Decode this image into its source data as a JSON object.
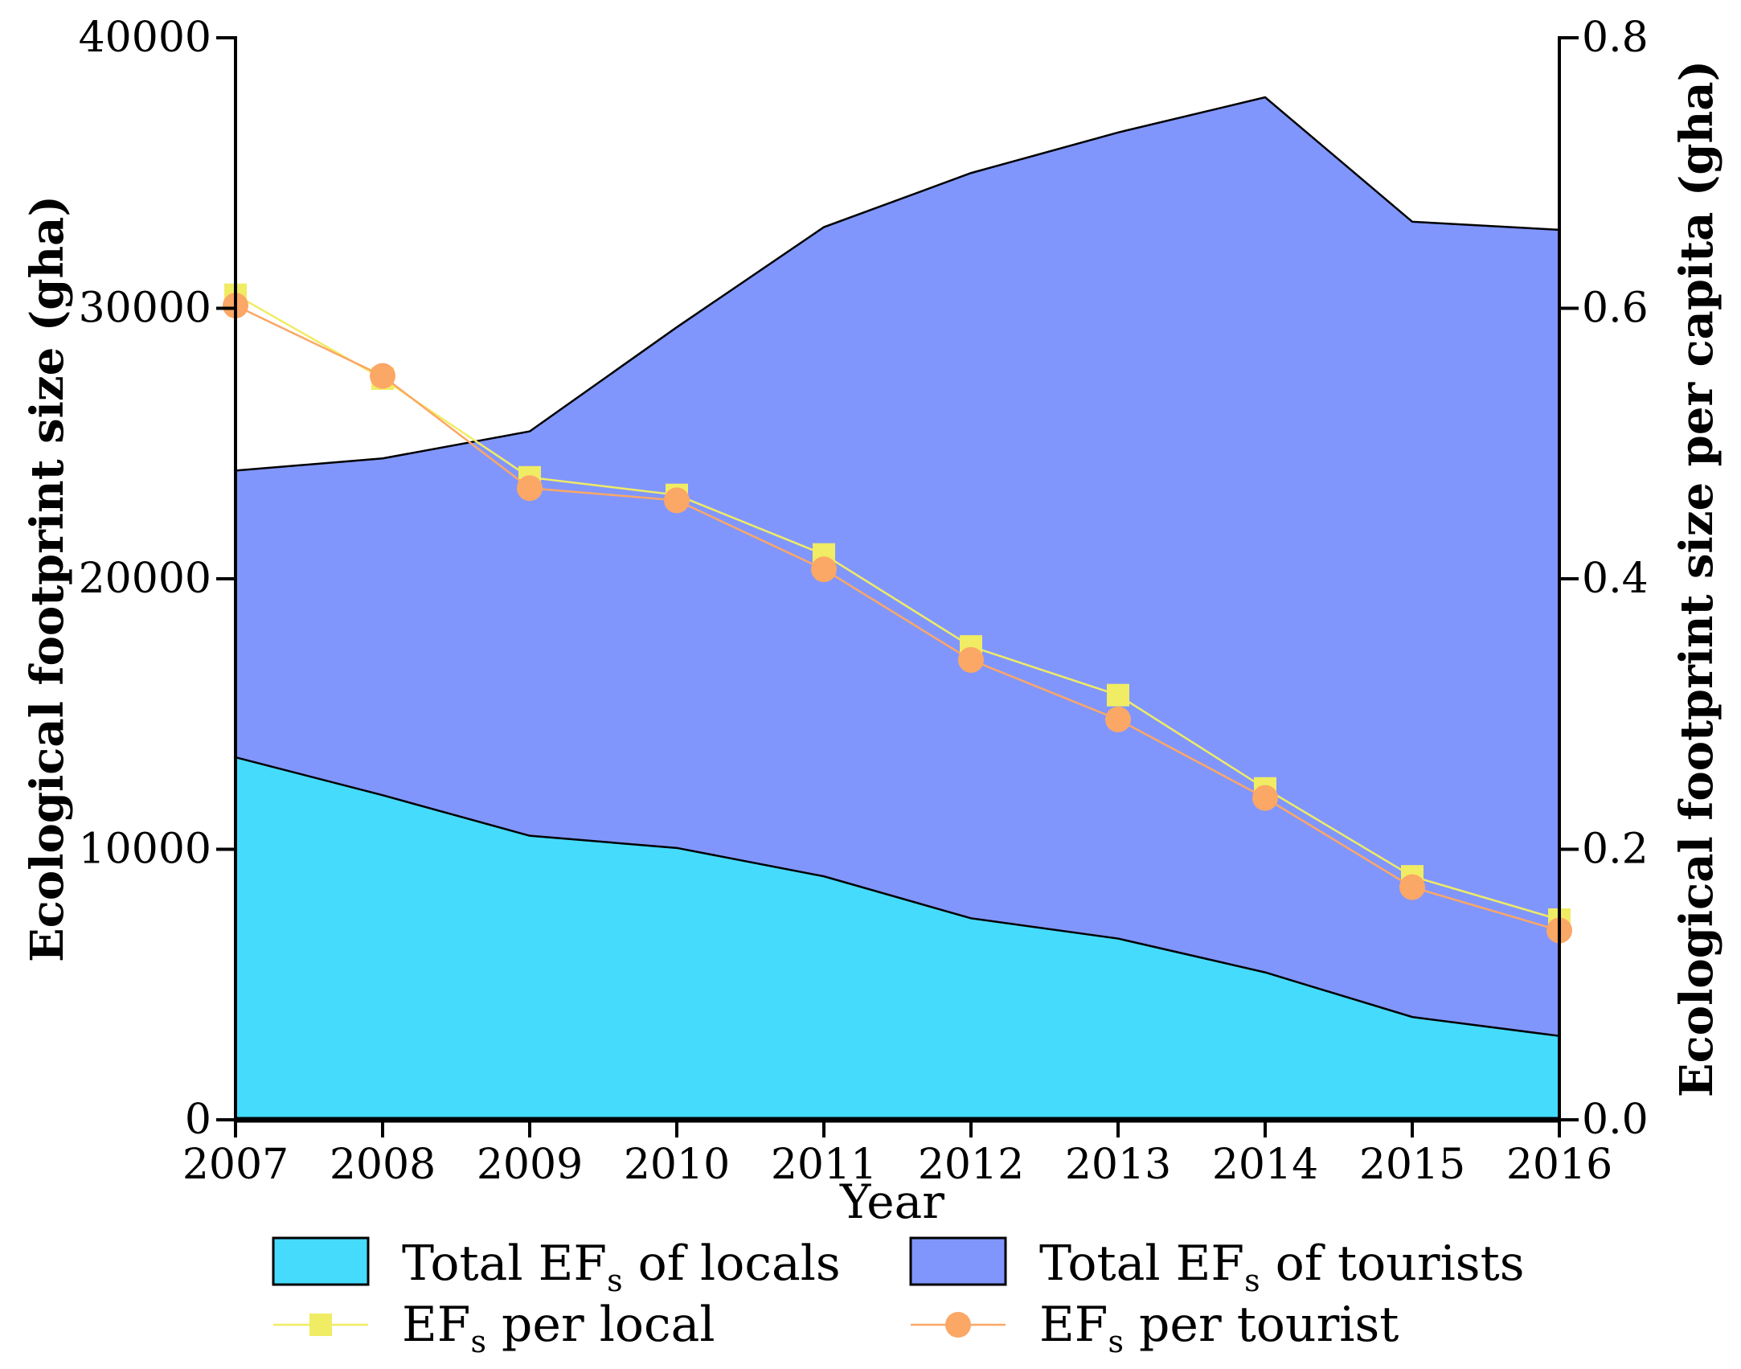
{
  "chart_data": {
    "type": "area",
    "x": [
      2007,
      2008,
      2009,
      2010,
      2011,
      2012,
      2013,
      2014,
      2015,
      2016
    ],
    "xlabel": "Year",
    "ylabel_left": "Ecological footprint size (gha)",
    "ylabel_right": "Ecological footprint size per capita (gha)",
    "ylim_left": [
      0,
      40000
    ],
    "ylim_right": [
      0.0,
      0.8
    ],
    "yticks_left": [
      "0",
      "10000",
      "20000",
      "30000",
      "40000"
    ],
    "yticks_right": [
      "0.0",
      "0.2",
      "0.4",
      "0.6",
      "0.8"
    ],
    "xticks": [
      "2007",
      "2008",
      "2009",
      "2010",
      "2011",
      "2012",
      "2013",
      "2014",
      "2015",
      "2016"
    ],
    "series": [
      {
        "name": "Total EFs of locals",
        "legend_main": "Total EF",
        "legend_sub": "s",
        "legend_rest": " of locals",
        "kind": "area",
        "axis": "left",
        "color": "#45DBFD",
        "values": [
          13400,
          12000,
          10500,
          10050,
          9000,
          7450,
          6700,
          5450,
          3800,
          3100
        ]
      },
      {
        "name": "Total EFs of tourists",
        "legend_main": "Total EF",
        "legend_sub": "s",
        "legend_rest": " of tourists",
        "kind": "area",
        "axis": "left",
        "color": "#8196FC",
        "values": [
          24000,
          24450,
          25450,
          29300,
          33000,
          35000,
          36500,
          37800,
          33200,
          32900
        ]
      },
      {
        "name": "EFs per local",
        "legend_main": "EF",
        "legend_sub": "s",
        "legend_rest": " per local",
        "kind": "line",
        "marker": "square",
        "axis": "right",
        "color": "#F0EC64",
        "values": [
          0.61,
          0.548,
          0.475,
          0.462,
          0.418,
          0.35,
          0.314,
          0.245,
          0.18,
          0.148
        ]
      },
      {
        "name": "EFs per tourist",
        "legend_main": "EF",
        "legend_sub": "s",
        "legend_rest": " per tourist",
        "kind": "line",
        "marker": "circle",
        "axis": "right",
        "color": "#FBA766",
        "values": [
          0.602,
          0.55,
          0.467,
          0.458,
          0.407,
          0.34,
          0.296,
          0.238,
          0.172,
          0.14
        ]
      }
    ]
  }
}
